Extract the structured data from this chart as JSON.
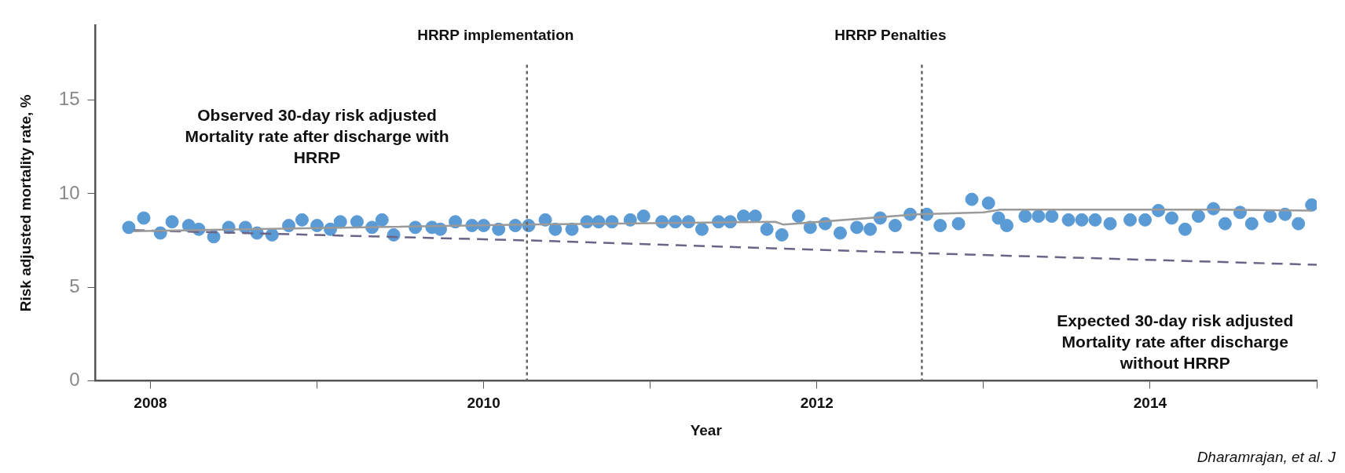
{
  "chart_data": {
    "type": "scatter",
    "xlabel": "Year",
    "ylabel": "Risk adjusted mortality rate, %",
    "xlim": [
      2007.67,
      2015
    ],
    "ylim": [
      0,
      19
    ],
    "xticks": [
      {
        "value": 2008,
        "label": "2008"
      },
      {
        "value": 2009,
        "label": null
      },
      {
        "value": 2010,
        "label": "2010"
      },
      {
        "value": 2011,
        "label": null
      },
      {
        "value": 2012,
        "label": "2012"
      },
      {
        "value": 2013,
        "label": null
      },
      {
        "value": 2014,
        "label": "2014"
      },
      {
        "value": 2015,
        "label": null
      }
    ],
    "yticks": [
      0,
      5,
      10,
      15
    ],
    "grid": false,
    "legend": false,
    "series": [
      {
        "type": "scatter",
        "color": "#5b9bd5",
        "marker": "circle",
        "x": [
          2007.87,
          2007.96,
          2008.06,
          2008.13,
          2008.23,
          2008.29,
          2008.38,
          2008.47,
          2008.57,
          2008.64,
          2008.73,
          2008.83,
          2008.91,
          2009.0,
          2009.08,
          2009.14,
          2009.24,
          2009.33,
          2009.39,
          2009.46,
          2009.59,
          2009.69,
          2009.74,
          2009.83,
          2009.93,
          2010.0,
          2010.09,
          2010.19,
          2010.27,
          2010.37,
          2010.43,
          2010.53,
          2010.62,
          2010.69,
          2010.77,
          2010.88,
          2010.96,
          2011.07,
          2011.15,
          2011.23,
          2011.31,
          2011.41,
          2011.48,
          2011.56,
          2011.63,
          2011.7,
          2011.79,
          2011.89,
          2011.96,
          2012.05,
          2012.14,
          2012.24,
          2012.32,
          2012.38,
          2012.47,
          2012.56,
          2012.66,
          2012.74,
          2012.85,
          2012.93,
          2013.03,
          2013.09,
          2013.14,
          2013.25,
          2013.33,
          2013.41,
          2013.51,
          2013.59,
          2013.67,
          2013.76,
          2013.88,
          2013.97,
          2014.05,
          2014.13,
          2014.21,
          2014.29,
          2014.38,
          2014.45,
          2014.54,
          2014.61,
          2014.72,
          2014.81,
          2014.89,
          2014.97
        ],
        "values": [
          8.2,
          8.7,
          7.9,
          8.5,
          8.3,
          8.1,
          7.7,
          8.2,
          8.2,
          7.9,
          7.8,
          8.3,
          8.6,
          8.3,
          8.1,
          8.5,
          8.5,
          8.2,
          8.6,
          7.8,
          8.2,
          8.2,
          8.1,
          8.5,
          8.3,
          8.3,
          8.1,
          8.3,
          8.3,
          8.6,
          8.1,
          8.1,
          8.5,
          8.5,
          8.5,
          8.6,
          8.8,
          8.5,
          8.5,
          8.5,
          8.1,
          8.5,
          8.5,
          8.8,
          8.8,
          8.1,
          7.8,
          8.8,
          8.2,
          8.4,
          7.9,
          8.2,
          8.1,
          8.7,
          8.3,
          8.9,
          8.9,
          8.3,
          8.4,
          9.7,
          9.5,
          8.7,
          8.3,
          8.8,
          8.8,
          8.8,
          8.6,
          8.6,
          8.6,
          8.4,
          8.6,
          8.6,
          9.1,
          8.7,
          8.1,
          8.8,
          9.2,
          8.4,
          9.0,
          8.4,
          8.8,
          8.9,
          8.4,
          9.4
        ]
      },
      {
        "type": "line",
        "color": "#9a9a9a",
        "line_style": "solid",
        "marker": "none",
        "x": [
          2007.9,
          2010.25,
          2011.75,
          2011.8,
          2012.6,
          2013.0,
          2013.1,
          2014.4,
          2014.97
        ],
        "values": [
          8.0,
          8.35,
          8.5,
          8.35,
          8.9,
          9.0,
          9.15,
          9.15,
          9.1
        ]
      },
      {
        "type": "line",
        "color": "#6b6487",
        "line_style": "dashed",
        "marker": "none",
        "x": [
          2007.9,
          2010.28,
          2012.9,
          2015
        ],
        "values": [
          8.05,
          7.5,
          6.75,
          6.2
        ]
      }
    ],
    "ref_lines": [
      {
        "axis": "x",
        "value": 2010.26,
        "label": "HRRP implementation",
        "color": "#666666",
        "line_style": "dotted"
      },
      {
        "axis": "x",
        "value": 2012.63,
        "label": "HRRP Penalties",
        "color": "#666666",
        "line_style": "dotted"
      }
    ],
    "annotations": [
      "Observed 30-day risk adjusted Mortality rate after discharge with HRRP",
      "Expected 30-day risk adjusted Mortality rate after discharge without HRRP",
      "Dharamrajan, et al. J"
    ]
  }
}
